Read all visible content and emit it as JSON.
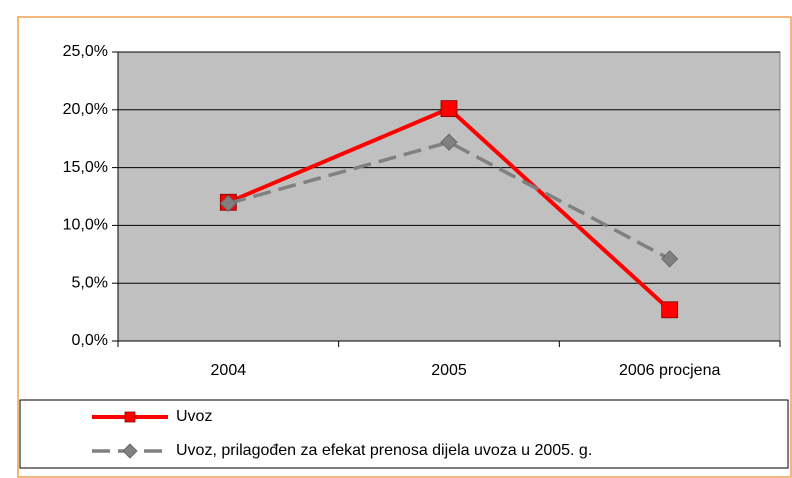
{
  "chart_data": {
    "type": "line",
    "categories": [
      "2004",
      "2005",
      "2006 procjena"
    ],
    "series": [
      {
        "name": "Uvoz",
        "color": "#ff0000",
        "marker": "square",
        "dashed": false,
        "values": [
          12.0,
          20.1,
          2.7
        ]
      },
      {
        "name": "Uvoz, prilagođen za efekat prenosa dijela uvoza u 2005. g.",
        "color": "#808080",
        "marker": "diamond",
        "dashed": true,
        "values": [
          11.9,
          17.2,
          7.1
        ]
      }
    ],
    "ylim": [
      0,
      25
    ],
    "yticks": [
      {
        "value": 0,
        "label": "0,0%"
      },
      {
        "value": 5,
        "label": "5,0%"
      },
      {
        "value": 10,
        "label": "10,0%"
      },
      {
        "value": 15,
        "label": "15,0%"
      },
      {
        "value": 20,
        "label": "20,0%"
      },
      {
        "value": 25,
        "label": "25,0%"
      }
    ],
    "grid": true,
    "legend": "bottom",
    "plot_background": "#c0c0c0"
  }
}
